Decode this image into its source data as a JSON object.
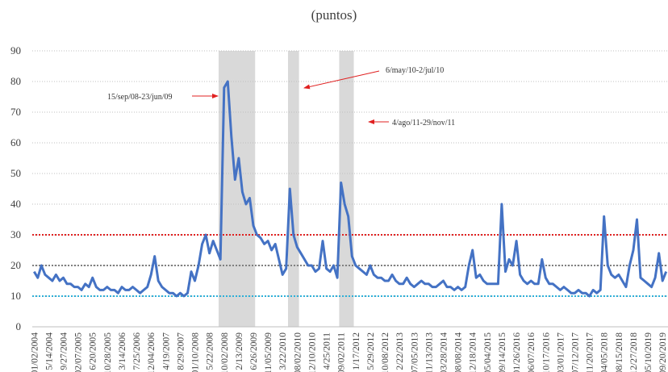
{
  "chart_data": {
    "type": "line",
    "title": "(puntos)",
    "ylim": [
      0,
      90
    ],
    "yticks": [
      0,
      10,
      20,
      30,
      40,
      50,
      60,
      70,
      80,
      90
    ],
    "grid": true,
    "categories": [
      "01/02/2004",
      null,
      null,
      null,
      "5/14/2004",
      null,
      null,
      null,
      "9/27/2004",
      null,
      null,
      null,
      "02/07/2005",
      null,
      null,
      null,
      "6/20/2005",
      null,
      null,
      null,
      "10/28/2005",
      null,
      null,
      null,
      "3/14/2006",
      null,
      null,
      null,
      "7/25/2006",
      null,
      null,
      null,
      "12/04/2006",
      null,
      null,
      null,
      "4/19/2007",
      null,
      null,
      null,
      "8/29/2007",
      null,
      null,
      null,
      "01/10/2008",
      null,
      null,
      null,
      "5/22/2008",
      null,
      null,
      null,
      "10/02/2008",
      null,
      null,
      null,
      "2/13/2009",
      null,
      null,
      null,
      "6/26/2009",
      null,
      null,
      null,
      "11/05/2009",
      null,
      null,
      null,
      "3/22/2010",
      null,
      null,
      null,
      "08/02/2010",
      null,
      null,
      null,
      "12/10/2010",
      null,
      null,
      null,
      "4/25/2011",
      null,
      null,
      null,
      "09/02/2011",
      null,
      null,
      null,
      "1/17/2012",
      null,
      null,
      null,
      "5/29/2012",
      null,
      null,
      null,
      "10/08/2012",
      null,
      null,
      null,
      "2/22/2013",
      null,
      null,
      null,
      "07/05/2013",
      null,
      null,
      null,
      "11/13/2013",
      null,
      null,
      null,
      "03/28/2014",
      null,
      null,
      null,
      "08/08/2014",
      null,
      null,
      null,
      "12/18/2014",
      null,
      null,
      null,
      "05/04/2015",
      null,
      null,
      null,
      "09/14/2015",
      null,
      null,
      null,
      "01/26/2016",
      null,
      null,
      null,
      "06/07/2016",
      null,
      null,
      null,
      "10/17/2016",
      null,
      null,
      null,
      "03/01/2017",
      null,
      null,
      null,
      "07/12/2017",
      null,
      null,
      null,
      "11/20/2017",
      null,
      null,
      null,
      "04/05/2018",
      null,
      null,
      null,
      "08/15/2018",
      null,
      null,
      null,
      "12/27/2018",
      null,
      null,
      null,
      "05/10/2019",
      null,
      null,
      null,
      "09/20/2019",
      null
    ],
    "series": [
      {
        "color": "#4472c4",
        "values": [
          18,
          16,
          20,
          17,
          16,
          15,
          17,
          15,
          16,
          14,
          14,
          13,
          13,
          12,
          14,
          13,
          16,
          13,
          12,
          12,
          13,
          12,
          12,
          11,
          13,
          12,
          12,
          13,
          12,
          11,
          12,
          13,
          17,
          23,
          15,
          13,
          12,
          11,
          11,
          10,
          11,
          10,
          11,
          18,
          15,
          20,
          27,
          30,
          24,
          28,
          25,
          22,
          78,
          80,
          62,
          48,
          55,
          44,
          40,
          42,
          33,
          30,
          29,
          27,
          28,
          25,
          27,
          22,
          17,
          19,
          45,
          30,
          26,
          24,
          22,
          20,
          20,
          18,
          19,
          28,
          19,
          18,
          20,
          16,
          47,
          40,
          36,
          23,
          20,
          19,
          18,
          17,
          20,
          17,
          16,
          16,
          15,
          15,
          17,
          15,
          14,
          14,
          16,
          14,
          13,
          14,
          15,
          14,
          14,
          13,
          13,
          14,
          15,
          13,
          13,
          12,
          13,
          12,
          13,
          20,
          25,
          16,
          17,
          15,
          14,
          14,
          14,
          14,
          40,
          18,
          22,
          20,
          28,
          17,
          15,
          14,
          15,
          14,
          14,
          22,
          16,
          14,
          14,
          13,
          12,
          13,
          12,
          11,
          11,
          12,
          11,
          11,
          10,
          12,
          11,
          12,
          36,
          20,
          17,
          16,
          17,
          15,
          13,
          20,
          25,
          35,
          16,
          15,
          14,
          13,
          16,
          24,
          15,
          18
        ]
      }
    ],
    "reference_lines": [
      {
        "value": 30,
        "color": "#e02020"
      },
      {
        "value": 20,
        "color": "#808080"
      },
      {
        "value": 10,
        "color": "#2eb0d8"
      }
    ],
    "periods": [
      {
        "label": "15/sep/08-23/jun/09",
        "start": 51,
        "end": 60
      },
      {
        "label": "6/may/10-2/jul/10",
        "start": 70,
        "end": 72
      },
      {
        "label": "4/ago/11-29/nov/11",
        "start": 84,
        "end": 87
      }
    ]
  }
}
